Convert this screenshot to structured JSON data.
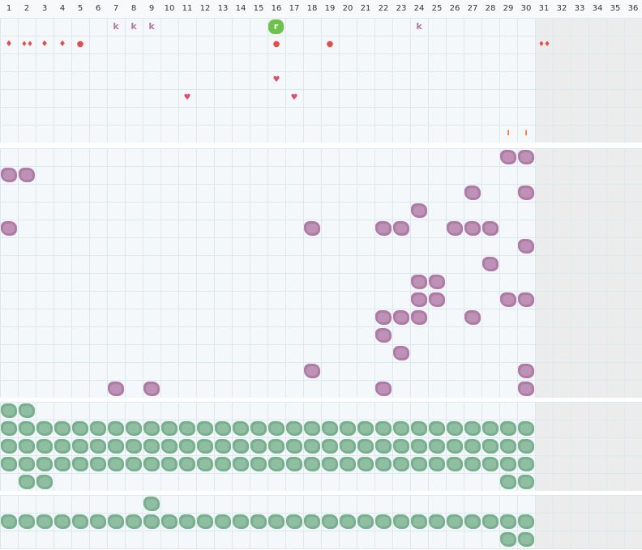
{
  "columns": [
    "1",
    "2",
    "3",
    "4",
    "5",
    "6",
    "7",
    "8",
    "9",
    "10",
    "11",
    "12",
    "13",
    "14",
    "15",
    "16",
    "17",
    "18",
    "19",
    "20",
    "21",
    "22",
    "23",
    "24",
    "25",
    "26",
    "27",
    "28",
    "29",
    "30",
    "31",
    "32",
    "33",
    "34",
    "35",
    "36"
  ],
  "colors": {
    "grid_bg": "#f4f8fa",
    "grid_line": "#dbe8ee",
    "disabled_bg": "#ececec",
    "purple": "#b07aa6",
    "green": "#78b08e",
    "green_bright": "#6cc24a",
    "red": "#e0504c",
    "pink": "#d9506e",
    "orange": "#e8743c"
  },
  "section1": {
    "markers": [
      {
        "icon": "k-glyph",
        "text": "k",
        "col": 7,
        "row": 0,
        "color": "#b07aa6"
      },
      {
        "icon": "k-glyph",
        "text": "k",
        "col": 8,
        "row": 0,
        "color": "#b07aa6"
      },
      {
        "icon": "k-glyph",
        "text": "k",
        "col": 9,
        "row": 0,
        "color": "#b07aa6"
      },
      {
        "icon": "r-badge",
        "text": "r",
        "col": 16,
        "row": 0,
        "color": "#6cc24a"
      },
      {
        "icon": "k-glyph",
        "text": "k",
        "col": 24,
        "row": 0,
        "color": "#b07aa6"
      },
      {
        "icon": "drop-icon",
        "text": "♦",
        "col": 1,
        "row": 1,
        "color": "#e0504c"
      },
      {
        "icon": "double-drop-icon",
        "text": "♦♦",
        "col": 2,
        "row": 1,
        "color": "#e0504c"
      },
      {
        "icon": "drop-icon",
        "text": "♦",
        "col": 3,
        "row": 1,
        "color": "#e0504c"
      },
      {
        "icon": "drop-icon",
        "text": "♦",
        "col": 4,
        "row": 1,
        "color": "#e0504c"
      },
      {
        "icon": "dot-icon",
        "text": "●",
        "col": 5,
        "row": 1,
        "color": "#e0504c"
      },
      {
        "icon": "dot-icon",
        "text": "●",
        "col": 16,
        "row": 1,
        "color": "#e0504c"
      },
      {
        "icon": "dot-icon",
        "text": "●",
        "col": 19,
        "row": 1,
        "color": "#e0504c"
      },
      {
        "icon": "double-drop-icon",
        "text": "♦♦",
        "col": 31,
        "row": 1,
        "color": "#e0504c"
      },
      {
        "icon": "heart-icon",
        "text": "♥",
        "col": 16,
        "row": 3,
        "color": "#d9506e"
      },
      {
        "icon": "heart-icon",
        "text": "♥",
        "col": 11,
        "row": 4,
        "color": "#d9506e"
      },
      {
        "icon": "heart-icon",
        "text": "♥",
        "col": 17,
        "row": 4,
        "color": "#d9506e"
      },
      {
        "icon": "tick-icon",
        "text": "I",
        "col": 29,
        "row": 6,
        "color": "#e8743c"
      },
      {
        "icon": "tick-icon",
        "text": "I",
        "col": 30,
        "row": 6,
        "color": "#e8743c"
      }
    ]
  },
  "section2": {
    "blobs": [
      [
        29,
        0
      ],
      [
        30,
        0
      ],
      [
        1,
        1
      ],
      [
        2,
        1
      ],
      [
        27,
        2
      ],
      [
        30,
        2
      ],
      [
        24,
        3
      ],
      [
        1,
        4
      ],
      [
        18,
        4
      ],
      [
        22,
        4
      ],
      [
        23,
        4
      ],
      [
        26,
        4
      ],
      [
        27,
        4
      ],
      [
        28,
        4
      ],
      [
        30,
        5
      ],
      [
        28,
        6
      ],
      [
        24,
        7
      ],
      [
        25,
        7
      ],
      [
        24,
        8
      ],
      [
        25,
        8
      ],
      [
        29,
        8
      ],
      [
        30,
        8
      ],
      [
        22,
        9
      ],
      [
        23,
        9
      ],
      [
        24,
        9
      ],
      [
        27,
        9
      ],
      [
        22,
        10
      ],
      [
        23,
        11
      ],
      [
        18,
        12
      ],
      [
        30,
        12
      ],
      [
        7,
        13
      ],
      [
        9,
        13
      ],
      [
        22,
        13
      ],
      [
        30,
        13
      ]
    ]
  },
  "section3": {
    "blobs": [
      [
        1,
        0
      ],
      [
        2,
        0
      ],
      [
        1,
        1
      ],
      [
        2,
        1
      ],
      [
        3,
        1
      ],
      [
        4,
        1
      ],
      [
        5,
        1
      ],
      [
        6,
        1
      ],
      [
        7,
        1
      ],
      [
        8,
        1
      ],
      [
        9,
        1
      ],
      [
        10,
        1
      ],
      [
        11,
        1
      ],
      [
        12,
        1
      ],
      [
        13,
        1
      ],
      [
        14,
        1
      ],
      [
        15,
        1
      ],
      [
        16,
        1
      ],
      [
        17,
        1
      ],
      [
        18,
        1
      ],
      [
        19,
        1
      ],
      [
        20,
        1
      ],
      [
        21,
        1
      ],
      [
        22,
        1
      ],
      [
        23,
        1
      ],
      [
        24,
        1
      ],
      [
        25,
        1
      ],
      [
        26,
        1
      ],
      [
        27,
        1
      ],
      [
        28,
        1
      ],
      [
        29,
        1
      ],
      [
        30,
        1
      ],
      [
        1,
        2
      ],
      [
        2,
        2
      ],
      [
        3,
        2
      ],
      [
        4,
        2
      ],
      [
        5,
        2
      ],
      [
        6,
        2
      ],
      [
        7,
        2
      ],
      [
        8,
        2
      ],
      [
        9,
        2
      ],
      [
        10,
        2
      ],
      [
        11,
        2
      ],
      [
        12,
        2
      ],
      [
        13,
        2
      ],
      [
        14,
        2
      ],
      [
        15,
        2
      ],
      [
        16,
        2
      ],
      [
        17,
        2
      ],
      [
        18,
        2
      ],
      [
        19,
        2
      ],
      [
        20,
        2
      ],
      [
        21,
        2
      ],
      [
        22,
        2
      ],
      [
        23,
        2
      ],
      [
        24,
        2
      ],
      [
        25,
        2
      ],
      [
        26,
        2
      ],
      [
        27,
        2
      ],
      [
        28,
        2
      ],
      [
        29,
        2
      ],
      [
        30,
        2
      ],
      [
        1,
        3
      ],
      [
        2,
        3
      ],
      [
        3,
        3
      ],
      [
        4,
        3
      ],
      [
        5,
        3
      ],
      [
        6,
        3
      ],
      [
        7,
        3
      ],
      [
        8,
        3
      ],
      [
        9,
        3
      ],
      [
        10,
        3
      ],
      [
        11,
        3
      ],
      [
        12,
        3
      ],
      [
        13,
        3
      ],
      [
        14,
        3
      ],
      [
        15,
        3
      ],
      [
        16,
        3
      ],
      [
        17,
        3
      ],
      [
        18,
        3
      ],
      [
        19,
        3
      ],
      [
        20,
        3
      ],
      [
        21,
        3
      ],
      [
        22,
        3
      ],
      [
        23,
        3
      ],
      [
        24,
        3
      ],
      [
        25,
        3
      ],
      [
        26,
        3
      ],
      [
        27,
        3
      ],
      [
        28,
        3
      ],
      [
        29,
        3
      ],
      [
        30,
        3
      ],
      [
        2,
        4
      ],
      [
        3,
        4
      ],
      [
        29,
        4
      ],
      [
        30,
        4
      ]
    ]
  },
  "section4": {
    "blobs": [
      [
        9,
        0
      ],
      [
        1,
        1
      ],
      [
        2,
        1
      ],
      [
        3,
        1
      ],
      [
        4,
        1
      ],
      [
        5,
        1
      ],
      [
        6,
        1
      ],
      [
        7,
        1
      ],
      [
        8,
        1
      ],
      [
        9,
        1
      ],
      [
        10,
        1
      ],
      [
        11,
        1
      ],
      [
        12,
        1
      ],
      [
        13,
        1
      ],
      [
        14,
        1
      ],
      [
        15,
        1
      ],
      [
        16,
        1
      ],
      [
        17,
        1
      ],
      [
        18,
        1
      ],
      [
        19,
        1
      ],
      [
        20,
        1
      ],
      [
        21,
        1
      ],
      [
        22,
        1
      ],
      [
        23,
        1
      ],
      [
        24,
        1
      ],
      [
        25,
        1
      ],
      [
        26,
        1
      ],
      [
        27,
        1
      ],
      [
        28,
        1
      ],
      [
        29,
        1
      ],
      [
        30,
        1
      ],
      [
        29,
        2
      ],
      [
        30,
        2
      ]
    ]
  }
}
